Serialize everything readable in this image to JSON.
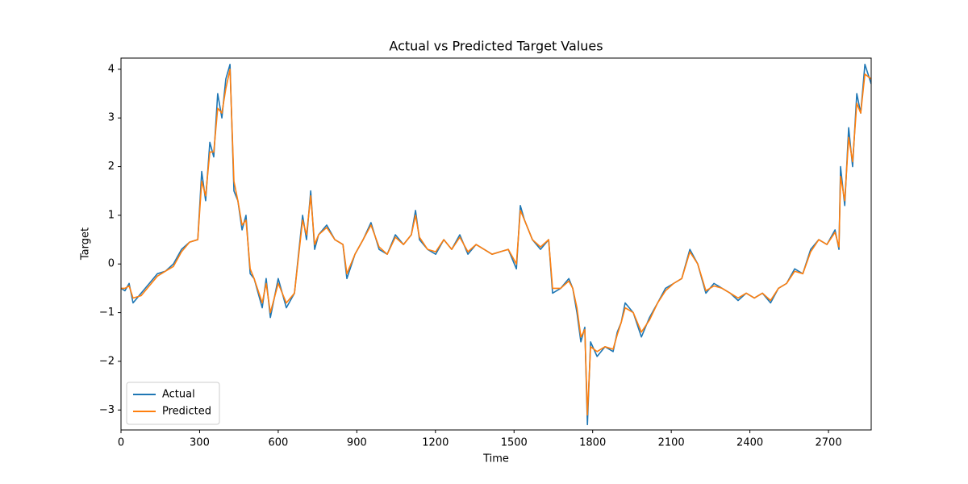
{
  "chart_data": {
    "type": "line",
    "title": "Actual vs Predicted Target Values",
    "x_label": "Time",
    "y_label": "Target",
    "x": [
      0,
      15,
      31,
      46,
      77,
      108,
      139,
      169,
      200,
      231,
      262,
      293,
      308,
      323,
      339,
      354,
      369,
      385,
      400,
      416,
      431,
      446,
      462,
      477,
      493,
      508,
      539,
      554,
      570,
      600,
      631,
      662,
      693,
      708,
      724,
      739,
      754,
      785,
      816,
      847,
      862,
      893,
      924,
      954,
      985,
      1016,
      1047,
      1078,
      1108,
      1124,
      1139,
      1170,
      1201,
      1232,
      1262,
      1293,
      1324,
      1355,
      1386,
      1416,
      1447,
      1478,
      1509,
      1524,
      1540,
      1570,
      1601,
      1632,
      1647,
      1678,
      1709,
      1724,
      1740,
      1755,
      1770,
      1780,
      1792,
      1817,
      1847,
      1878,
      1894,
      1909,
      1924,
      1955,
      1986,
      2017,
      2048,
      2078,
      2109,
      2140,
      2171,
      2201,
      2232,
      2263,
      2294,
      2325,
      2355,
      2386,
      2417,
      2448,
      2479,
      2509,
      2540,
      2571,
      2602,
      2632,
      2663,
      2694,
      2725,
      2740,
      2746,
      2762,
      2777,
      2792,
      2808,
      2823,
      2839,
      2863
    ],
    "series": [
      {
        "name": "Actual",
        "color": "#1f77b4",
        "values": [
          -0.5,
          -0.55,
          -0.4,
          -0.8,
          -0.6,
          -0.4,
          -0.2,
          -0.15,
          0.0,
          0.3,
          0.45,
          0.5,
          1.9,
          1.3,
          2.5,
          2.2,
          3.5,
          3.0,
          3.8,
          4.1,
          1.5,
          1.3,
          0.7,
          1.0,
          -0.2,
          -0.3,
          -0.9,
          -0.3,
          -1.1,
          -0.3,
          -0.9,
          -0.6,
          1.0,
          0.5,
          1.5,
          0.3,
          0.6,
          0.8,
          0.5,
          0.4,
          -0.3,
          0.2,
          0.5,
          0.85,
          0.3,
          0.2,
          0.6,
          0.4,
          0.6,
          1.1,
          0.5,
          0.3,
          0.2,
          0.5,
          0.3,
          0.6,
          0.2,
          0.4,
          0.3,
          0.2,
          0.25,
          0.3,
          -0.1,
          1.2,
          0.9,
          0.5,
          0.3,
          0.5,
          -0.6,
          -0.5,
          -0.3,
          -0.5,
          -1.0,
          -1.6,
          -1.3,
          -3.3,
          -1.6,
          -1.9,
          -1.7,
          -1.8,
          -1.4,
          -1.2,
          -0.8,
          -1.0,
          -1.5,
          -1.1,
          -0.8,
          -0.5,
          -0.4,
          -0.3,
          0.3,
          0.0,
          -0.6,
          -0.4,
          -0.5,
          -0.6,
          -0.75,
          -0.6,
          -0.7,
          -0.6,
          -0.8,
          -0.5,
          -0.4,
          -0.1,
          -0.2,
          0.3,
          0.5,
          0.4,
          0.7,
          0.3,
          2.0,
          1.2,
          2.8,
          2.0,
          3.5,
          3.1,
          4.1,
          3.7
        ]
      },
      {
        "name": "Predicted",
        "color": "#ff7f0e",
        "values": [
          -0.5,
          -0.5,
          -0.45,
          -0.7,
          -0.65,
          -0.45,
          -0.25,
          -0.15,
          -0.05,
          0.25,
          0.45,
          0.5,
          1.7,
          1.4,
          2.3,
          2.3,
          3.2,
          3.1,
          3.6,
          4.0,
          1.7,
          1.3,
          0.8,
          0.9,
          -0.1,
          -0.3,
          -0.8,
          -0.4,
          -1.0,
          -0.4,
          -0.8,
          -0.6,
          0.9,
          0.6,
          1.4,
          0.4,
          0.6,
          0.75,
          0.5,
          0.4,
          -0.2,
          0.2,
          0.5,
          0.8,
          0.35,
          0.2,
          0.55,
          0.4,
          0.6,
          1.0,
          0.55,
          0.3,
          0.25,
          0.5,
          0.3,
          0.55,
          0.25,
          0.4,
          0.3,
          0.2,
          0.25,
          0.3,
          0.0,
          1.1,
          0.9,
          0.5,
          0.35,
          0.5,
          -0.5,
          -0.5,
          -0.35,
          -0.5,
          -0.9,
          -1.5,
          -1.35,
          -3.1,
          -1.7,
          -1.8,
          -1.7,
          -1.75,
          -1.45,
          -1.2,
          -0.9,
          -1.0,
          -1.4,
          -1.15,
          -0.8,
          -0.55,
          -0.4,
          -0.3,
          0.25,
          0.0,
          -0.55,
          -0.45,
          -0.5,
          -0.6,
          -0.7,
          -0.6,
          -0.7,
          -0.6,
          -0.75,
          -0.5,
          -0.4,
          -0.15,
          -0.2,
          0.25,
          0.5,
          0.4,
          0.65,
          0.35,
          1.8,
          1.3,
          2.6,
          2.1,
          3.3,
          3.1,
          3.9,
          3.8
        ]
      }
    ],
    "xlim": [
      0,
      2863
    ],
    "ylim": [
      -3.41,
      4.23
    ],
    "xticks": [
      0,
      300,
      600,
      900,
      1200,
      1500,
      1800,
      2100,
      2400,
      2700
    ],
    "yticks": [
      {
        "value": -3,
        "label": "−3"
      },
      {
        "value": -2,
        "label": "−2"
      },
      {
        "value": -1,
        "label": "−1"
      },
      0,
      1,
      2,
      3,
      4
    ],
    "legend": "lower left"
  }
}
